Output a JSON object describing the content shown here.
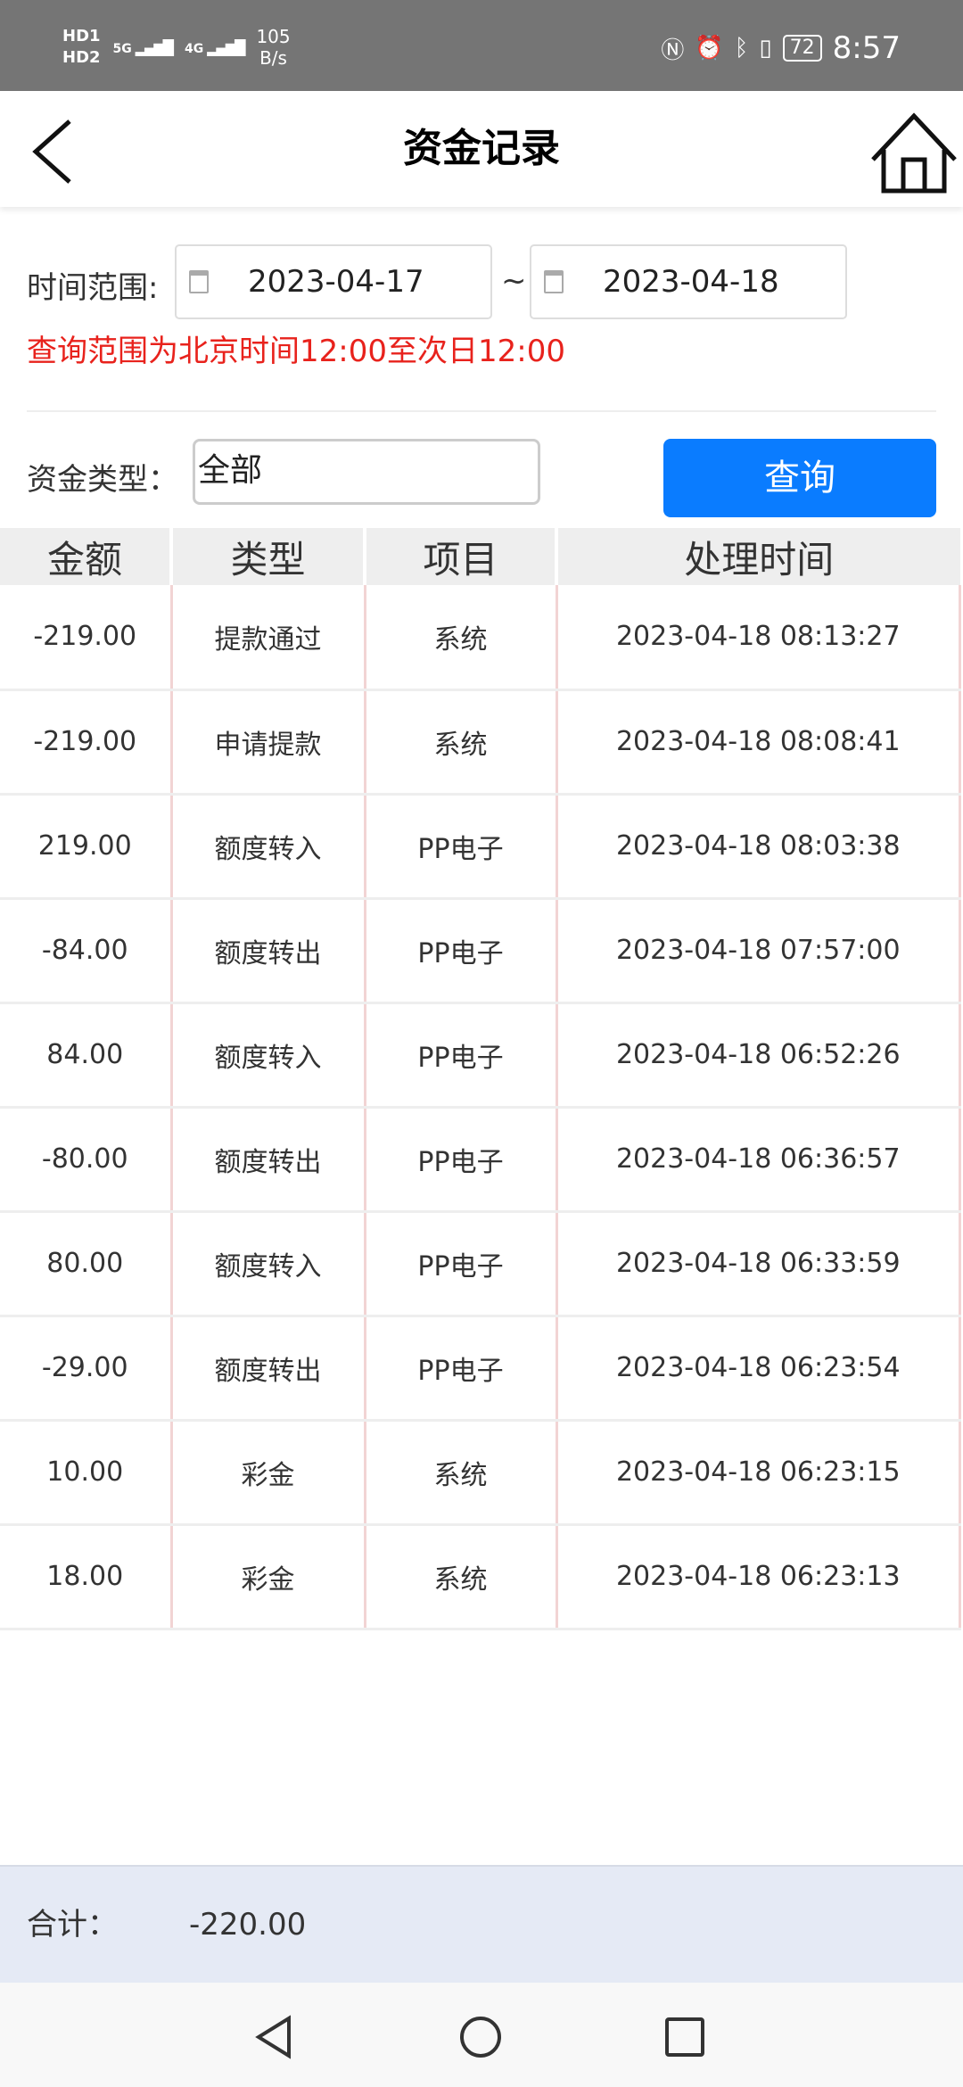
{
  "status_bar": {
    "sim1": "HD1",
    "sim2": "HD2",
    "net1": "5G",
    "net2": "4G",
    "speed_value": "105",
    "speed_unit": "B/s",
    "battery": "72",
    "time": "8:57"
  },
  "header": {
    "title": "资金记录"
  },
  "filters": {
    "time_range_label": "时间范围:",
    "start_date": "2023-04-17",
    "separator": "~",
    "end_date": "2023-04-18",
    "note": "查询范围为北京时间12:00至次日12:00",
    "fund_type_label": "资金类型：",
    "fund_type_value": "全部",
    "query_label": "查询"
  },
  "table": {
    "headers": [
      "金额",
      "类型",
      "项目",
      "处理时间"
    ],
    "rows": [
      [
        "-219.00",
        "提款通过",
        "系统",
        "2023-04-18 08:13:27"
      ],
      [
        "-219.00",
        "申请提款",
        "系统",
        "2023-04-18 08:08:41"
      ],
      [
        "219.00",
        "额度转入",
        "PP电子",
        "2023-04-18 08:03:38"
      ],
      [
        "-84.00",
        "额度转出",
        "PP电子",
        "2023-04-18 07:57:00"
      ],
      [
        "84.00",
        "额度转入",
        "PP电子",
        "2023-04-18 06:52:26"
      ],
      [
        "-80.00",
        "额度转出",
        "PP电子",
        "2023-04-18 06:36:57"
      ],
      [
        "80.00",
        "额度转入",
        "PP电子",
        "2023-04-18 06:33:59"
      ],
      [
        "-29.00",
        "额度转出",
        "PP电子",
        "2023-04-18 06:23:54"
      ],
      [
        "10.00",
        "彩金",
        "系统",
        "2023-04-18 06:23:15"
      ],
      [
        "18.00",
        "彩金",
        "系统",
        "2023-04-18 06:23:13"
      ]
    ]
  },
  "footer": {
    "total_label": "合计：",
    "total_value": "-220.00"
  },
  "colors": {
    "accent": "#0a7cff",
    "note": "#e8221c",
    "footer_bg": "#e5eaf5"
  }
}
